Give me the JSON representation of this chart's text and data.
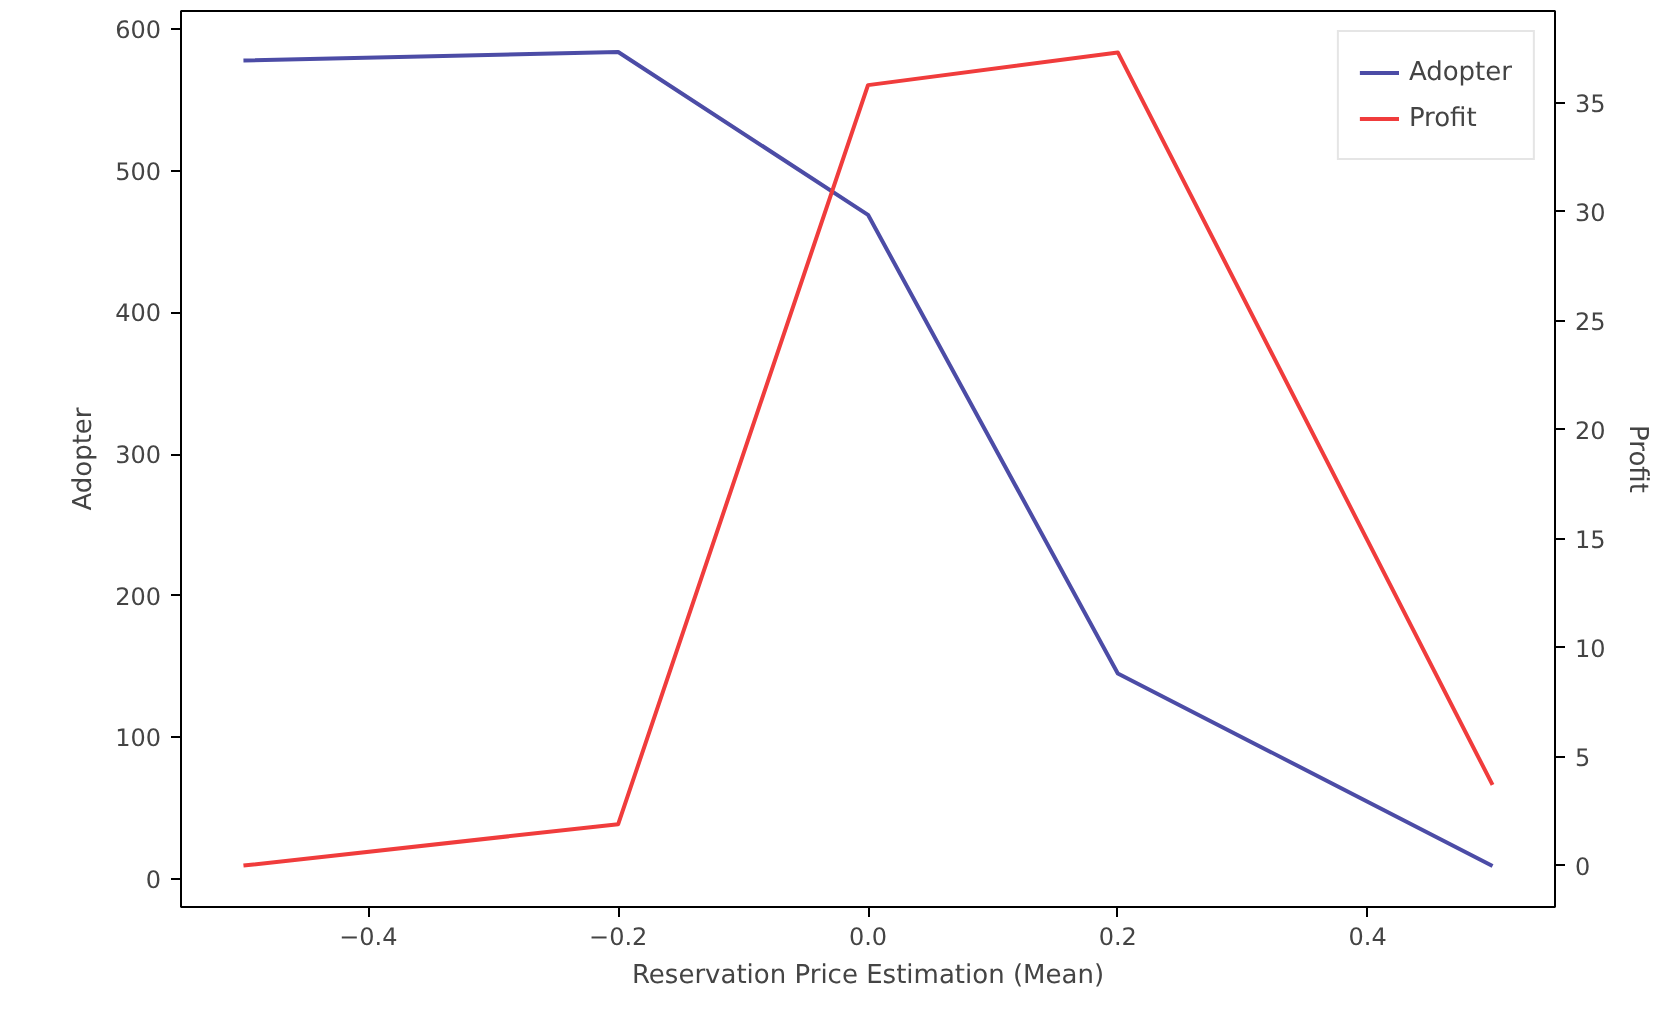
{
  "chart_data": {
    "type": "line",
    "xlabel": "Reservation Price Estimation (Mean)",
    "ylabel": "Adopter",
    "y2label": "Profit",
    "x": [
      -0.5,
      -0.2,
      0.0,
      0.2,
      0.5
    ],
    "series": [
      {
        "name": "Adopter",
        "color": "#4c4ca6",
        "values": [
          578,
          584,
          469,
          145,
          9
        ]
      },
      {
        "name": "Profit",
        "color": "#f03c3c",
        "values": [
          0,
          1.9,
          35.8,
          37.3,
          3.7
        ],
        "axis": "y2"
      }
    ],
    "xlim": [
      -0.55,
      0.55
    ],
    "xticks": [
      {
        "value": -0.4,
        "label": "−0.4"
      },
      {
        "value": -0.2,
        "label": "−0.2"
      },
      {
        "value": 0.0,
        "label": "0.0"
      },
      {
        "value": 0.2,
        "label": "0.2"
      },
      {
        "value": 0.4,
        "label": "0.4"
      }
    ],
    "ylim": [
      -20,
      613
    ],
    "yticks": [
      0,
      100,
      200,
      300,
      400,
      500,
      600
    ],
    "y2lim": [
      -1.9,
      39.2
    ],
    "y2ticks": [
      0,
      5,
      10,
      15,
      20,
      25,
      30,
      35
    ],
    "legend": "top right",
    "grid": false,
    "marker": "none",
    "line_style": "solid"
  }
}
